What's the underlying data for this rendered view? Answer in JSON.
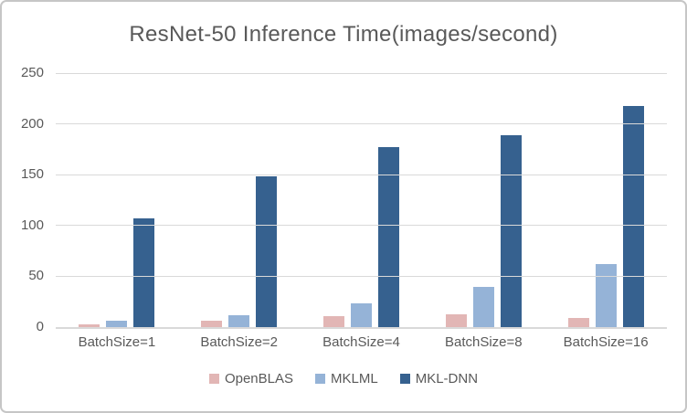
{
  "window": {
    "background": "#ffffff",
    "border_color": "#c6c6c6"
  },
  "chart_data": {
    "type": "bar",
    "title": "ResNet-50 Inference Time(images/second)",
    "categories": [
      "BatchSize=1",
      "BatchSize=2",
      "BatchSize=4",
      "BatchSize=8",
      "BatchSize=16"
    ],
    "series": [
      {
        "name": "OpenBLAS",
        "color": "#e2b6b5",
        "values": [
          3,
          6,
          11,
          13,
          9
        ]
      },
      {
        "name": "MKLML",
        "color": "#95b3d7",
        "values": [
          6,
          12,
          23,
          40,
          62
        ]
      },
      {
        "name": "MKL-DNN",
        "color": "#36618f",
        "values": [
          107,
          148,
          177,
          189,
          218
        ]
      }
    ],
    "xlabel": "",
    "ylabel": "",
    "ylim": [
      0,
      250
    ],
    "yticks": [
      0,
      50,
      100,
      150,
      200,
      250
    ],
    "grid": true,
    "legend_position": "bottom",
    "text_color": "#595959",
    "grid_color": "#d9d9d9"
  }
}
